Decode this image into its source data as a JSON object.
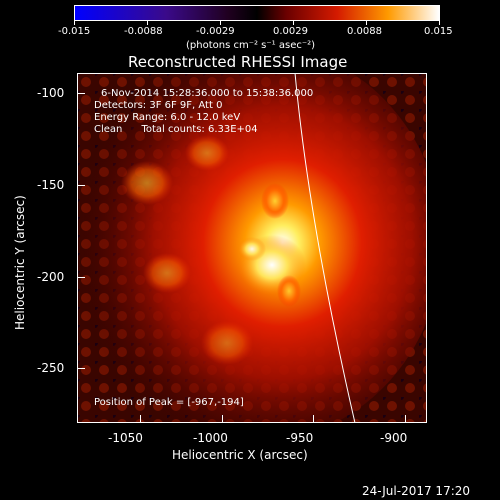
{
  "colorbar": {
    "tick_labels": [
      "-0.015",
      "-0.0088",
      "-0.0029",
      "0.0029",
      "0.0088",
      "0.015"
    ],
    "unit_label": "(photons cm⁻² s⁻¹ asec⁻²)"
  },
  "plot": {
    "title": "Reconstructed RHESSI Image",
    "xlabel": "Heliocentric X (arcsec)",
    "ylabel": "Heliocentric Y (arcsec)",
    "x_ticks": [
      "-1050",
      "-1000",
      "-950",
      "-900"
    ],
    "y_ticks": [
      "-100",
      "-150",
      "-200",
      "-250"
    ],
    "info_lines": [
      "6-Nov-2014 15:28:36.000 to 15:38:36.000",
      "Detectors: 3F 6F 9F, Att 0",
      "Energy Range: 6.0 - 12.0 keV",
      "Clean      Total counts: 6.33E+04"
    ],
    "peak_label": "Position of Peak = [-967,-194]"
  },
  "footer": {
    "timestamp": "24-Jul-2017 17:20"
  }
}
